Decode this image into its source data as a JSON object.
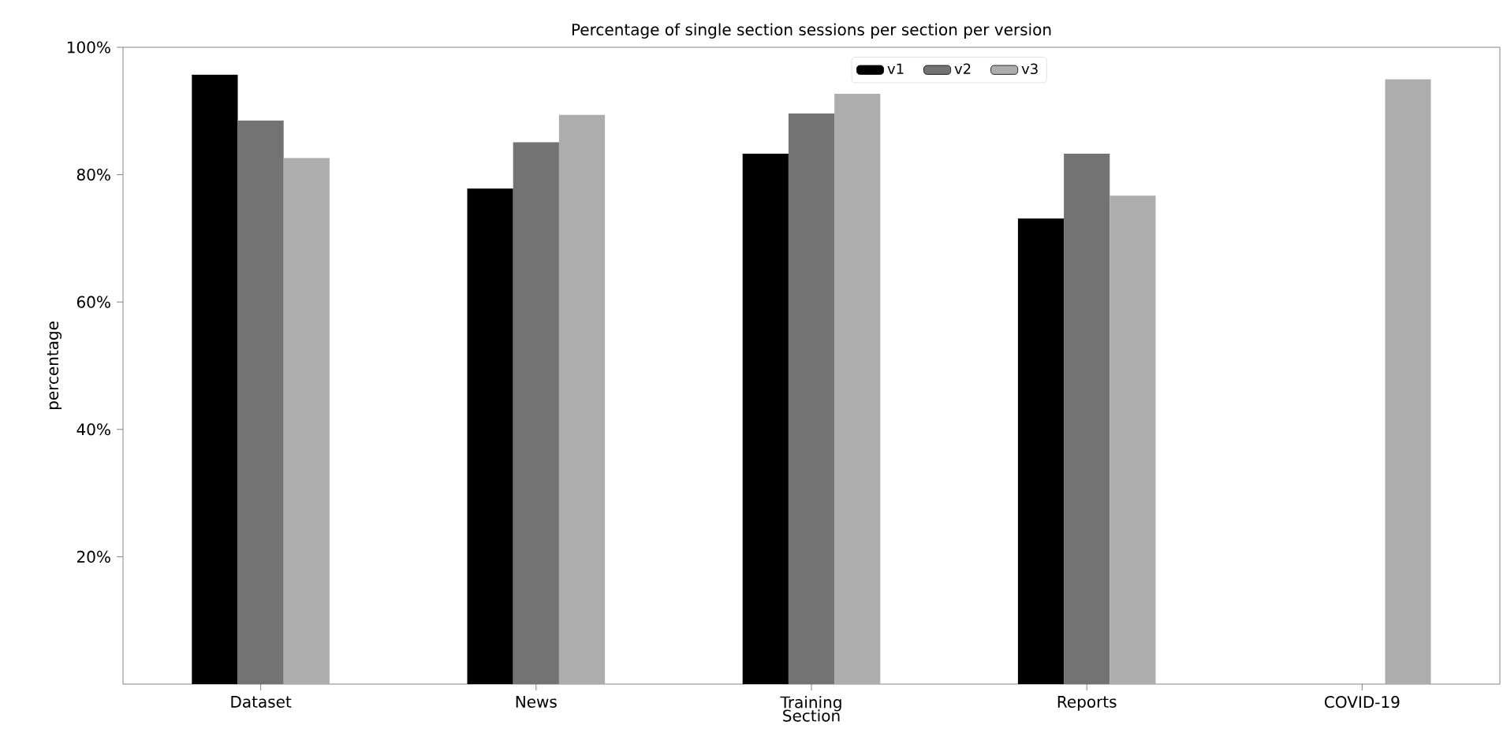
{
  "chart_data": {
    "type": "bar",
    "title": "Percentage of single section sessions per section per version",
    "xlabel": "Section",
    "ylabel": "percentage",
    "categories": [
      "Dataset",
      "News",
      "Training",
      "Reports",
      "COVID-19"
    ],
    "series": [
      {
        "name": "v1",
        "color": "#000000",
        "values": [
          95.7,
          77.8,
          83.3,
          73.1,
          null
        ]
      },
      {
        "name": "v2",
        "color": "#737373",
        "values": [
          88.5,
          85.1,
          89.6,
          83.3,
          null
        ]
      },
      {
        "name": "v3",
        "color": "#adadad",
        "values": [
          82.6,
          89.4,
          92.7,
          76.7,
          95
        ]
      }
    ],
    "ylim": [
      0,
      100
    ],
    "yticks": [
      {
        "value": 20,
        "label": "20%"
      },
      {
        "value": 40,
        "label": "40%"
      },
      {
        "value": 60,
        "label": "60%"
      },
      {
        "value": 80,
        "label": "80%"
      },
      {
        "value": 100,
        "label": "100%"
      }
    ],
    "grid": false,
    "legend": "top"
  }
}
